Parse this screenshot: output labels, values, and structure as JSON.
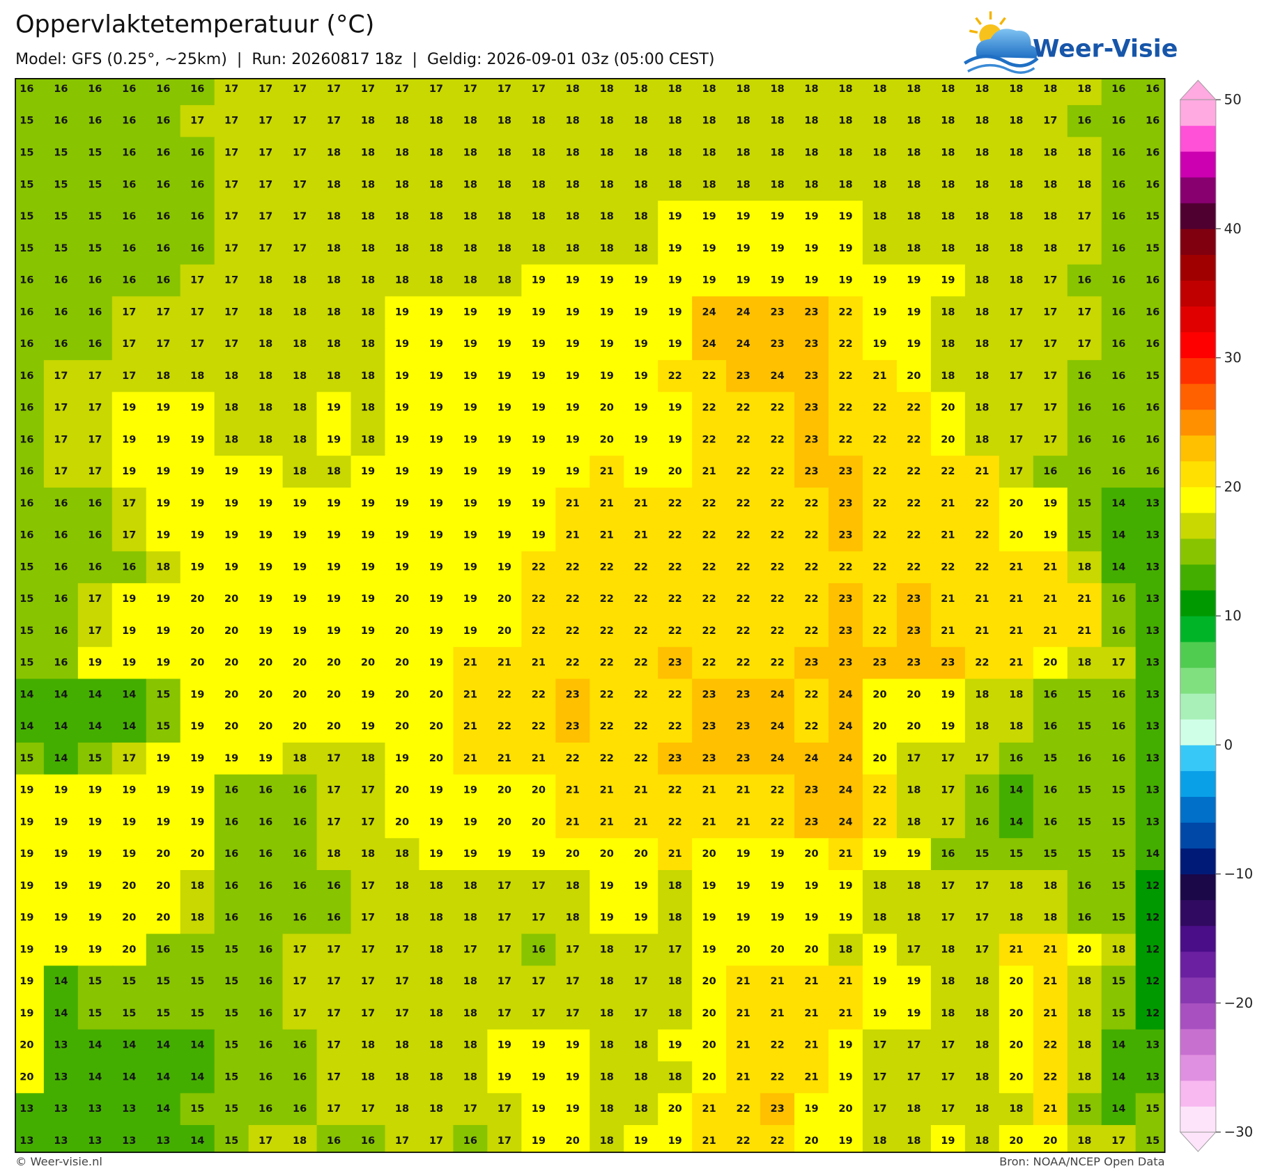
{
  "header": {
    "title": "Oppervlaktetemperatuur (°C)",
    "subtitle": "Model: GFS (0.25°, ~25km)  |  Run: 20260817 18z  |  Geldig: 2026-09-01 03z (05:00 CEST)",
    "logo": "Weer-Visie"
  },
  "colorbar": {
    "lim": [
      -30,
      50
    ],
    "colors": [
      "#fde4fa",
      "#f8b8f0",
      "#e090e0",
      "#c870d0",
      "#a850c0",
      "#8838b0",
      "#6a20a0",
      "#4a0e88",
      "#300a60",
      "#1a0848",
      "#001a78",
      "#0048a8",
      "#0070c8",
      "#0aa0e8",
      "#38c8f8",
      "#d0ffe8",
      "#a8f0b8",
      "#80e080",
      "#50cc50",
      "#00b428",
      "#009a00",
      "#44ae00",
      "#88c400",
      "#c8d800",
      "#ffff00",
      "#ffe000",
      "#ffc000",
      "#ff9000",
      "#ff6000",
      "#ff3000",
      "#ff0000",
      "#e00000",
      "#c00000",
      "#a00000",
      "#800010",
      "#500030",
      "#880070",
      "#cc00b0",
      "#ff50d8",
      "#ffaae0"
    ],
    "ticks": [
      50,
      40,
      30,
      20,
      10,
      0,
      {
        "value": -10,
        "label": "−10"
      },
      {
        "value": -20,
        "label": "−20"
      },
      {
        "value": -30,
        "label": "−30"
      }
    ]
  },
  "map": {
    "rows": [
      [
        16,
        16,
        16,
        16,
        16,
        16,
        17,
        17,
        17,
        17,
        17,
        17,
        17,
        17,
        17,
        17,
        18,
        18,
        18,
        18,
        18,
        18,
        18,
        18,
        18,
        18,
        18,
        18,
        18,
        18,
        18,
        18,
        16,
        16
      ],
      [
        15,
        16,
        16,
        16,
        16,
        17,
        17,
        17,
        17,
        17,
        18,
        18,
        18,
        18,
        18,
        18,
        18,
        18,
        18,
        18,
        18,
        18,
        18,
        18,
        18,
        18,
        18,
        18,
        18,
        18,
        17,
        16,
        16,
        16
      ],
      [
        15,
        15,
        15,
        16,
        16,
        16,
        17,
        17,
        17,
        18,
        18,
        18,
        18,
        18,
        18,
        18,
        18,
        18,
        18,
        18,
        18,
        18,
        18,
        18,
        18,
        18,
        18,
        18,
        18,
        18,
        18,
        18,
        16,
        16
      ],
      [
        15,
        15,
        15,
        16,
        16,
        16,
        17,
        17,
        17,
        18,
        18,
        18,
        18,
        18,
        18,
        18,
        18,
        18,
        18,
        18,
        18,
        18,
        18,
        18,
        18,
        18,
        18,
        18,
        18,
        18,
        18,
        18,
        16,
        16
      ],
      [
        15,
        15,
        15,
        16,
        16,
        16,
        17,
        17,
        17,
        18,
        18,
        18,
        18,
        18,
        18,
        18,
        18,
        18,
        18,
        19,
        19,
        19,
        19,
        19,
        19,
        18,
        18,
        18,
        18,
        18,
        18,
        17,
        16,
        15
      ],
      [
        15,
        15,
        15,
        16,
        16,
        16,
        17,
        17,
        17,
        18,
        18,
        18,
        18,
        18,
        18,
        18,
        18,
        18,
        18,
        19,
        19,
        19,
        19,
        19,
        19,
        18,
        18,
        18,
        18,
        18,
        18,
        17,
        16,
        15
      ],
      [
        16,
        16,
        16,
        16,
        16,
        17,
        17,
        18,
        18,
        18,
        18,
        18,
        18,
        18,
        18,
        19,
        19,
        19,
        19,
        19,
        19,
        19,
        19,
        19,
        19,
        19,
        19,
        19,
        18,
        18,
        17,
        16,
        16,
        16
      ],
      [
        16,
        16,
        16,
        17,
        17,
        17,
        17,
        18,
        18,
        18,
        18,
        19,
        19,
        19,
        19,
        19,
        19,
        19,
        19,
        19,
        24,
        24,
        23,
        23,
        22,
        19,
        19,
        18,
        18,
        17,
        17,
        17,
        16,
        16
      ],
      [
        16,
        16,
        16,
        17,
        17,
        17,
        17,
        18,
        18,
        18,
        18,
        19,
        19,
        19,
        19,
        19,
        19,
        19,
        19,
        19,
        24,
        24,
        23,
        23,
        22,
        19,
        19,
        18,
        18,
        17,
        17,
        17,
        16,
        16
      ],
      [
        16,
        17,
        17,
        17,
        18,
        18,
        18,
        18,
        18,
        18,
        18,
        19,
        19,
        19,
        19,
        19,
        19,
        19,
        19,
        22,
        22,
        23,
        24,
        23,
        22,
        21,
        20,
        18,
        18,
        17,
        17,
        16,
        16,
        15
      ],
      [
        16,
        17,
        17,
        19,
        19,
        19,
        18,
        18,
        18,
        19,
        18,
        19,
        19,
        19,
        19,
        19,
        19,
        20,
        19,
        19,
        22,
        22,
        22,
        23,
        22,
        22,
        22,
        20,
        18,
        17,
        17,
        16,
        16,
        16
      ],
      [
        16,
        17,
        17,
        19,
        19,
        19,
        18,
        18,
        18,
        19,
        18,
        19,
        19,
        19,
        19,
        19,
        19,
        20,
        19,
        19,
        22,
        22,
        22,
        23,
        22,
        22,
        22,
        20,
        18,
        17,
        17,
        16,
        16,
        16
      ],
      [
        16,
        17,
        17,
        19,
        19,
        19,
        19,
        19,
        18,
        18,
        19,
        19,
        19,
        19,
        19,
        19,
        19,
        21,
        19,
        20,
        21,
        22,
        22,
        23,
        23,
        22,
        22,
        22,
        21,
        17,
        16,
        16,
        16,
        16
      ],
      [
        16,
        16,
        16,
        17,
        19,
        19,
        19,
        19,
        19,
        19,
        19,
        19,
        19,
        19,
        19,
        19,
        21,
        21,
        21,
        22,
        22,
        22,
        22,
        22,
        23,
        22,
        22,
        21,
        22,
        20,
        19,
        15,
        14,
        13
      ],
      [
        16,
        16,
        16,
        17,
        19,
        19,
        19,
        19,
        19,
        19,
        19,
        19,
        19,
        19,
        19,
        19,
        21,
        21,
        21,
        22,
        22,
        22,
        22,
        22,
        23,
        22,
        22,
        21,
        22,
        20,
        19,
        15,
        14,
        13
      ],
      [
        15,
        16,
        16,
        16,
        18,
        19,
        19,
        19,
        19,
        19,
        19,
        19,
        19,
        19,
        19,
        22,
        22,
        22,
        22,
        22,
        22,
        22,
        22,
        22,
        22,
        22,
        22,
        22,
        22,
        21,
        21,
        18,
        14,
        13
      ],
      [
        15,
        16,
        17,
        19,
        19,
        20,
        20,
        19,
        19,
        19,
        19,
        20,
        19,
        19,
        20,
        22,
        22,
        22,
        22,
        22,
        22,
        22,
        22,
        22,
        23,
        22,
        23,
        21,
        21,
        21,
        21,
        21,
        16,
        13
      ],
      [
        15,
        16,
        17,
        19,
        19,
        20,
        20,
        19,
        19,
        19,
        19,
        20,
        19,
        19,
        20,
        22,
        22,
        22,
        22,
        22,
        22,
        22,
        22,
        22,
        23,
        22,
        23,
        21,
        21,
        21,
        21,
        21,
        16,
        13
      ],
      [
        15,
        16,
        19,
        19,
        19,
        20,
        20,
        20,
        20,
        20,
        20,
        20,
        19,
        21,
        21,
        21,
        22,
        22,
        22,
        23,
        22,
        22,
        22,
        23,
        23,
        23,
        23,
        23,
        22,
        21,
        20,
        18,
        17,
        13
      ],
      [
        14,
        14,
        14,
        14,
        15,
        19,
        20,
        20,
        20,
        20,
        19,
        20,
        20,
        21,
        22,
        22,
        23,
        22,
        22,
        22,
        23,
        23,
        24,
        22,
        24,
        20,
        20,
        19,
        18,
        18,
        16,
        15,
        16,
        13
      ],
      [
        14,
        14,
        14,
        14,
        15,
        19,
        20,
        20,
        20,
        20,
        19,
        20,
        20,
        21,
        22,
        22,
        23,
        22,
        22,
        22,
        23,
        23,
        24,
        22,
        24,
        20,
        20,
        19,
        18,
        18,
        16,
        15,
        16,
        13
      ],
      [
        15,
        14,
        15,
        17,
        19,
        19,
        19,
        19,
        18,
        17,
        18,
        19,
        20,
        21,
        21,
        21,
        22,
        22,
        22,
        23,
        23,
        23,
        24,
        24,
        24,
        20,
        17,
        17,
        17,
        16,
        15,
        16,
        16,
        13
      ],
      [
        19,
        19,
        19,
        19,
        19,
        19,
        16,
        16,
        16,
        17,
        17,
        20,
        19,
        19,
        20,
        20,
        21,
        21,
        21,
        22,
        21,
        21,
        22,
        23,
        24,
        22,
        18,
        17,
        16,
        14,
        16,
        15,
        15,
        13
      ],
      [
        19,
        19,
        19,
        19,
        19,
        19,
        16,
        16,
        16,
        17,
        17,
        20,
        19,
        19,
        20,
        20,
        21,
        21,
        21,
        22,
        21,
        21,
        22,
        23,
        24,
        22,
        18,
        17,
        16,
        14,
        16,
        15,
        15,
        13
      ],
      [
        19,
        19,
        19,
        19,
        20,
        20,
        16,
        16,
        16,
        18,
        18,
        18,
        19,
        19,
        19,
        19,
        20,
        20,
        20,
        21,
        20,
        19,
        19,
        20,
        21,
        19,
        19,
        16,
        15,
        15,
        15,
        15,
        15,
        14
      ],
      [
        19,
        19,
        19,
        20,
        20,
        18,
        16,
        16,
        16,
        16,
        17,
        18,
        18,
        18,
        17,
        17,
        18,
        19,
        19,
        18,
        19,
        19,
        19,
        19,
        19,
        18,
        18,
        17,
        17,
        18,
        18,
        16,
        15,
        12
      ],
      [
        19,
        19,
        19,
        20,
        20,
        18,
        16,
        16,
        16,
        16,
        17,
        18,
        18,
        18,
        17,
        17,
        18,
        19,
        19,
        18,
        19,
        19,
        19,
        19,
        19,
        18,
        18,
        17,
        17,
        18,
        18,
        16,
        15,
        12
      ],
      [
        19,
        19,
        19,
        20,
        16,
        15,
        15,
        16,
        17,
        17,
        17,
        17,
        18,
        17,
        17,
        16,
        17,
        18,
        17,
        17,
        19,
        20,
        20,
        20,
        18,
        19,
        17,
        18,
        17,
        21,
        21,
        20,
        18,
        12
      ],
      [
        19,
        14,
        15,
        15,
        15,
        15,
        15,
        16,
        17,
        17,
        17,
        17,
        18,
        18,
        17,
        17,
        17,
        18,
        17,
        18,
        20,
        21,
        21,
        21,
        21,
        19,
        19,
        18,
        18,
        20,
        21,
        18,
        15,
        12
      ],
      [
        19,
        14,
        15,
        15,
        15,
        15,
        15,
        16,
        17,
        17,
        17,
        17,
        18,
        18,
        17,
        17,
        17,
        18,
        17,
        18,
        20,
        21,
        21,
        21,
        21,
        19,
        19,
        18,
        18,
        20,
        21,
        18,
        15,
        12
      ],
      [
        20,
        13,
        14,
        14,
        14,
        14,
        15,
        16,
        16,
        17,
        18,
        18,
        18,
        18,
        19,
        19,
        19,
        18,
        18,
        19,
        20,
        21,
        22,
        21,
        19,
        17,
        17,
        17,
        18,
        20,
        22,
        18,
        14,
        13
      ],
      [
        20,
        13,
        14,
        14,
        14,
        14,
        15,
        16,
        16,
        17,
        18,
        18,
        18,
        18,
        19,
        19,
        19,
        18,
        18,
        18,
        20,
        21,
        22,
        21,
        19,
        17,
        17,
        17,
        18,
        20,
        22,
        18,
        14,
        13
      ],
      [
        13,
        13,
        13,
        13,
        14,
        15,
        15,
        16,
        16,
        17,
        17,
        18,
        18,
        17,
        17,
        19,
        19,
        18,
        18,
        20,
        21,
        22,
        23,
        19,
        20,
        17,
        18,
        17,
        18,
        18,
        21,
        15,
        14,
        15
      ],
      [
        13,
        13,
        13,
        13,
        13,
        14,
        15,
        17,
        18,
        16,
        16,
        17,
        17,
        16,
        17,
        19,
        20,
        18,
        19,
        19,
        21,
        22,
        22,
        20,
        19,
        18,
        18,
        19,
        18,
        20,
        20,
        18,
        17,
        15
      ]
    ]
  },
  "footer": {
    "left": "© Weer-visie.nl",
    "right": "Bron: NOAA/NCEP Open Data"
  }
}
